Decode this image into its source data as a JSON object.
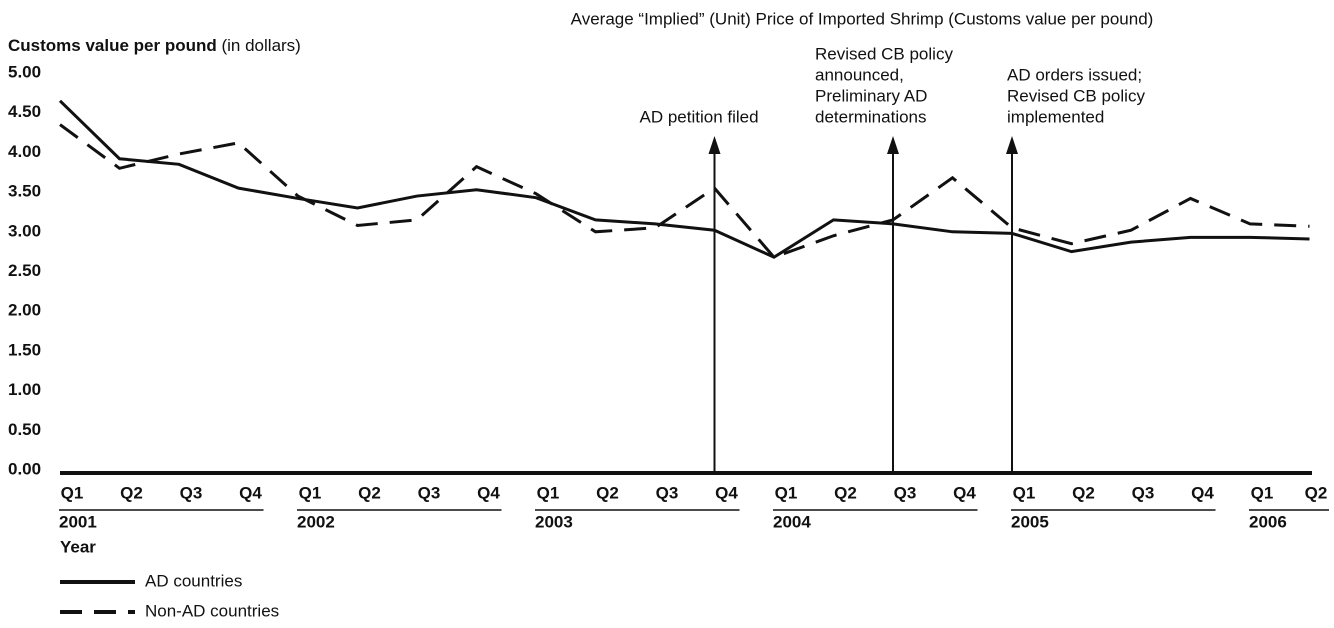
{
  "chart_data": {
    "type": "line",
    "title": "Average “Implied” (Unit) Price of Imported Shrimp (Customs value per pound)",
    "y_label": "Customs value per pound",
    "y_label_unit": "(in dollars)",
    "x_label": "Year",
    "categories": [
      "Q1",
      "Q2",
      "Q3",
      "Q4",
      "Q1",
      "Q2",
      "Q3",
      "Q4",
      "Q1",
      "Q2",
      "Q3",
      "Q4",
      "Q1",
      "Q2",
      "Q3",
      "Q4",
      "Q1",
      "Q2",
      "Q3",
      "Q4",
      "Q1",
      "Q2"
    ],
    "years": [
      "2001",
      "2002",
      "2003",
      "2004",
      "2005",
      "2006"
    ],
    "series": [
      {
        "name": "AD countries",
        "color": "#111111",
        "dash": "solid",
        "values": [
          4.65,
          3.92,
          3.85,
          3.55,
          3.42,
          3.3,
          3.45,
          3.53,
          3.43,
          3.15,
          3.1,
          3.02,
          2.68,
          3.15,
          3.1,
          3.0,
          2.98,
          2.75,
          2.87,
          2.93,
          2.93,
          2.91
        ]
      },
      {
        "name": "Non-AD countries",
        "color": "#111111",
        "dash": "dashed",
        "values": [
          4.35,
          3.8,
          3.98,
          4.12,
          3.45,
          3.08,
          3.15,
          3.82,
          3.48,
          3.0,
          3.05,
          3.55,
          2.68,
          2.95,
          3.15,
          3.68,
          3.05,
          2.85,
          3.02,
          3.42,
          3.1,
          3.07
        ]
      }
    ],
    "ylim": [
      0,
      5
    ],
    "yticks": [
      {
        "value": 0,
        "label": "0.00"
      },
      {
        "value": 0.5,
        "label": "0.50"
      },
      {
        "value": 1,
        "label": "1.00"
      },
      {
        "value": 1.5,
        "label": "1.50"
      },
      {
        "value": 2,
        "label": "2.00"
      },
      {
        "value": 2.5,
        "label": "2.50"
      },
      {
        "value": 3,
        "label": "3.00"
      },
      {
        "value": 3.5,
        "label": "3.50"
      },
      {
        "value": 4,
        "label": "4.00"
      },
      {
        "value": 4.5,
        "label": "4.50"
      },
      {
        "value": 5,
        "label": "5.00"
      }
    ],
    "annotations": [
      {
        "category_index": 11,
        "lines": [
          "AD petition filed"
        ]
      },
      {
        "category_index": 14,
        "lines": [
          "Revised CB policy",
          "announced,",
          "Preliminary AD",
          "determinations"
        ]
      },
      {
        "category_index": 16,
        "lines": [
          "AD orders issued;",
          "Revised CB policy",
          "implemented"
        ]
      }
    ]
  }
}
